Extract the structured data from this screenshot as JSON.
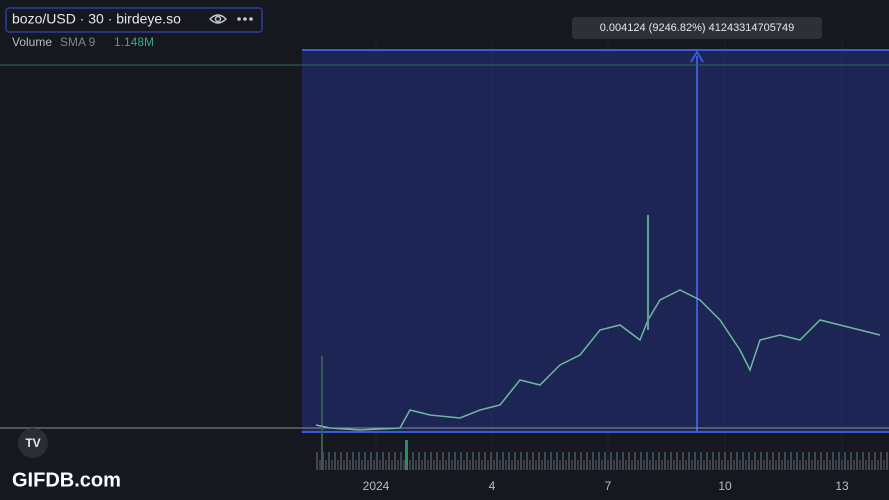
{
  "legend": {
    "symbol": "bozo/USD · 30 · birdeye.so",
    "indicator": "Volume",
    "indicator_params": "SMA 9",
    "indicator_value": "1.148M"
  },
  "measure": {
    "label": "0.004124 (9246.82%) 41243314705749"
  },
  "x_axis": {
    "labels": [
      "2024",
      "4",
      "7",
      "10",
      "13"
    ]
  },
  "watermark": "GIFDB.com"
}
